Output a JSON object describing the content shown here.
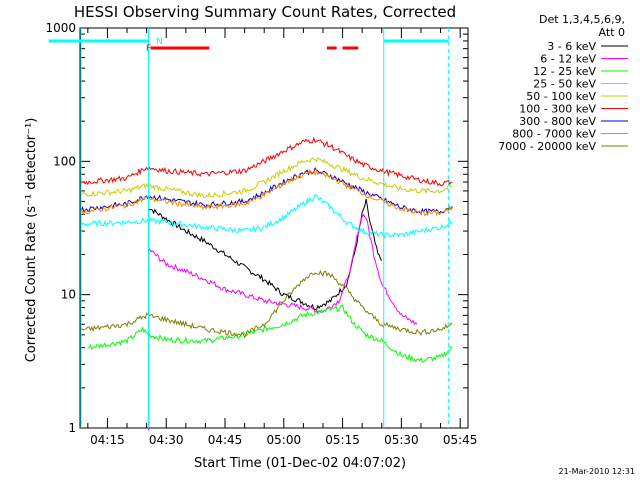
{
  "chart_data": {
    "type": "line",
    "title": "HESSI Observing Summary Count Rates, Corrected",
    "xlabel": "Start Time (01-Dec-02 04:07:02)",
    "ylabel": "Corrected Count Rate (s⁻¹ detector⁻¹)",
    "y_scale": "log",
    "ylim": [
      1,
      1000
    ],
    "xlim_minutes_after_0400": [
      8,
      47
    ],
    "x_ticks": [
      {
        "t": 15,
        "label": "04:15"
      },
      {
        "t": 30,
        "label": "04:30"
      },
      {
        "t": 45,
        "label": "04:45"
      },
      {
        "t": 60,
        "label": "05:00"
      },
      {
        "t": 75,
        "label": "05:15"
      },
      {
        "t": 90,
        "label": "05:30"
      },
      {
        "t": 105,
        "label": "05:45"
      }
    ],
    "y_ticks": [
      {
        "v": 1,
        "label": "1"
      },
      {
        "v": 10,
        "label": "10"
      },
      {
        "v": 100,
        "label": "100"
      },
      {
        "v": 1000,
        "label": "1000"
      }
    ],
    "legend_header": [
      "Det 1,3,4,5,6,9,",
      "Att 0"
    ],
    "legend_position": "right",
    "flag_labels": {
      "F": "F",
      "N": "N"
    },
    "timestamp": "21-Mar-2010 12:31",
    "series": [
      {
        "name": "3 - 6 keV",
        "color": "#000000",
        "points": [
          [
            25.5,
            1
          ],
          [
            25.5,
            45
          ],
          [
            30,
            37
          ],
          [
            35,
            30
          ],
          [
            40,
            25
          ],
          [
            45,
            20
          ],
          [
            50,
            16
          ],
          [
            55,
            13
          ],
          [
            60,
            10
          ],
          [
            64,
            9
          ],
          [
            68,
            8
          ],
          [
            72,
            9
          ],
          [
            76,
            12
          ],
          [
            78,
            20
          ],
          [
            80,
            40
          ],
          [
            81,
            50
          ],
          [
            82,
            35
          ],
          [
            84,
            20
          ],
          [
            85,
            18
          ]
        ]
      },
      {
        "name": "6 - 12 keV",
        "color": "#ff00ff",
        "points": [
          [
            25.5,
            1
          ],
          [
            25.5,
            22
          ],
          [
            30,
            17
          ],
          [
            35,
            15
          ],
          [
            40,
            13
          ],
          [
            45,
            11
          ],
          [
            50,
            10
          ],
          [
            55,
            9
          ],
          [
            60,
            8.5
          ],
          [
            65,
            8
          ],
          [
            70,
            7.5
          ],
          [
            74,
            9
          ],
          [
            77,
            15
          ],
          [
            79,
            30
          ],
          [
            80,
            40
          ],
          [
            81,
            38
          ],
          [
            83,
            20
          ],
          [
            85,
            12
          ],
          [
            90,
            7
          ],
          [
            94,
            6
          ]
        ]
      },
      {
        "name": "12 - 25 keV",
        "color": "#00ff00",
        "points": [
          [
            10,
            4
          ],
          [
            20,
            4.5
          ],
          [
            24,
            5.5
          ],
          [
            25.5,
            5
          ],
          [
            30,
            4.6
          ],
          [
            40,
            4.5
          ],
          [
            50,
            5
          ],
          [
            55,
            5.5
          ],
          [
            60,
            6
          ],
          [
            65,
            7
          ],
          [
            70,
            7.5
          ],
          [
            75,
            8
          ],
          [
            78,
            6
          ],
          [
            81,
            5
          ],
          [
            85,
            4.5
          ],
          [
            90,
            3.5
          ],
          [
            95,
            3.2
          ],
          [
            100,
            3.4
          ],
          [
            103,
            4
          ]
        ]
      },
      {
        "name": "25 - 50 keV",
        "color": "#00ffff",
        "points": [
          [
            0,
            33
          ],
          [
            10,
            34
          ],
          [
            20,
            35
          ],
          [
            25,
            36
          ],
          [
            30,
            35
          ],
          [
            40,
            32
          ],
          [
            50,
            30
          ],
          [
            55,
            32
          ],
          [
            60,
            38
          ],
          [
            65,
            48
          ],
          [
            68,
            55
          ],
          [
            72,
            45
          ],
          [
            76,
            35
          ],
          [
            80,
            30
          ],
          [
            85,
            28
          ],
          [
            90,
            28
          ],
          [
            95,
            30
          ],
          [
            100,
            32
          ],
          [
            103,
            35
          ]
        ]
      },
      {
        "name": "50 - 100 keV",
        "color": "#cccc00",
        "points": [
          [
            0,
            55
          ],
          [
            10,
            57
          ],
          [
            20,
            60
          ],
          [
            25,
            66
          ],
          [
            30,
            62
          ],
          [
            40,
            55
          ],
          [
            50,
            60
          ],
          [
            55,
            70
          ],
          [
            60,
            85
          ],
          [
            65,
            100
          ],
          [
            68,
            105
          ],
          [
            72,
            95
          ],
          [
            76,
            85
          ],
          [
            80,
            75
          ],
          [
            85,
            68
          ],
          [
            90,
            62
          ],
          [
            95,
            60
          ],
          [
            100,
            60
          ],
          [
            103,
            65
          ]
        ]
      },
      {
        "name": "100 - 300 keV",
        "color": "#ff0000",
        "points": [
          [
            0,
            68
          ],
          [
            10,
            70
          ],
          [
            20,
            75
          ],
          [
            25,
            90
          ],
          [
            30,
            85
          ],
          [
            40,
            80
          ],
          [
            50,
            85
          ],
          [
            55,
            100
          ],
          [
            60,
            120
          ],
          [
            65,
            140
          ],
          [
            68,
            145
          ],
          [
            72,
            130
          ],
          [
            76,
            110
          ],
          [
            80,
            95
          ],
          [
            85,
            85
          ],
          [
            90,
            78
          ],
          [
            95,
            72
          ],
          [
            100,
            68
          ],
          [
            103,
            70
          ]
        ]
      },
      {
        "name": "300 - 800 keV",
        "color": "#0000cc",
        "points": [
          [
            0,
            42
          ],
          [
            10,
            44
          ],
          [
            20,
            48
          ],
          [
            25,
            55
          ],
          [
            30,
            52
          ],
          [
            40,
            47
          ],
          [
            50,
            50
          ],
          [
            55,
            58
          ],
          [
            60,
            70
          ],
          [
            65,
            82
          ],
          [
            68,
            85
          ],
          [
            72,
            78
          ],
          [
            76,
            68
          ],
          [
            80,
            60
          ],
          [
            85,
            52
          ],
          [
            90,
            45
          ],
          [
            95,
            42
          ],
          [
            100,
            42
          ],
          [
            103,
            46
          ]
        ]
      },
      {
        "name": "800 - 7000 keV",
        "color": "#ff8800",
        "points": [
          [
            0,
            40
          ],
          [
            10,
            42
          ],
          [
            20,
            47
          ],
          [
            25,
            53
          ],
          [
            30,
            50
          ],
          [
            40,
            45
          ],
          [
            50,
            48
          ],
          [
            55,
            56
          ],
          [
            60,
            68
          ],
          [
            65,
            80
          ],
          [
            68,
            83
          ],
          [
            72,
            76
          ],
          [
            76,
            66
          ],
          [
            80,
            58
          ],
          [
            85,
            50
          ],
          [
            90,
            44
          ],
          [
            95,
            41
          ],
          [
            100,
            41
          ],
          [
            103,
            45
          ]
        ]
      },
      {
        "name": "7000 - 20000 keV",
        "color": "#808000",
        "points": [
          [
            0,
            5.5
          ],
          [
            10,
            5.5
          ],
          [
            20,
            6
          ],
          [
            25,
            7
          ],
          [
            30,
            6.5
          ],
          [
            40,
            5.5
          ],
          [
            50,
            5
          ],
          [
            55,
            6
          ],
          [
            60,
            9
          ],
          [
            65,
            13
          ],
          [
            68,
            15
          ],
          [
            72,
            14
          ],
          [
            76,
            11
          ],
          [
            80,
            8
          ],
          [
            85,
            6
          ],
          [
            90,
            5.5
          ],
          [
            95,
            5.2
          ],
          [
            100,
            5.5
          ],
          [
            103,
            6
          ]
        ]
      }
    ],
    "annotations": [
      {
        "kind": "vertical-solid",
        "t": 25.5,
        "color": "#00ffff"
      },
      {
        "kind": "vertical-dashed",
        "t": 25.5,
        "color": "#00ffff"
      },
      {
        "kind": "vertical-solid",
        "t": 85.5,
        "color": "#00ffff"
      },
      {
        "kind": "vertical-dashed",
        "t": 102,
        "color": "#00ffff"
      }
    ],
    "flag_bars": [
      {
        "name": "N",
        "color": "#00ffff",
        "segments": [
          [
            0,
            25.5
          ],
          [
            85.5,
            102
          ]
        ]
      },
      {
        "name": "F",
        "color": "#ff0000",
        "segments": [
          [
            26,
            41
          ],
          [
            71,
            73.5
          ],
          [
            75,
            79
          ]
        ]
      }
    ]
  }
}
